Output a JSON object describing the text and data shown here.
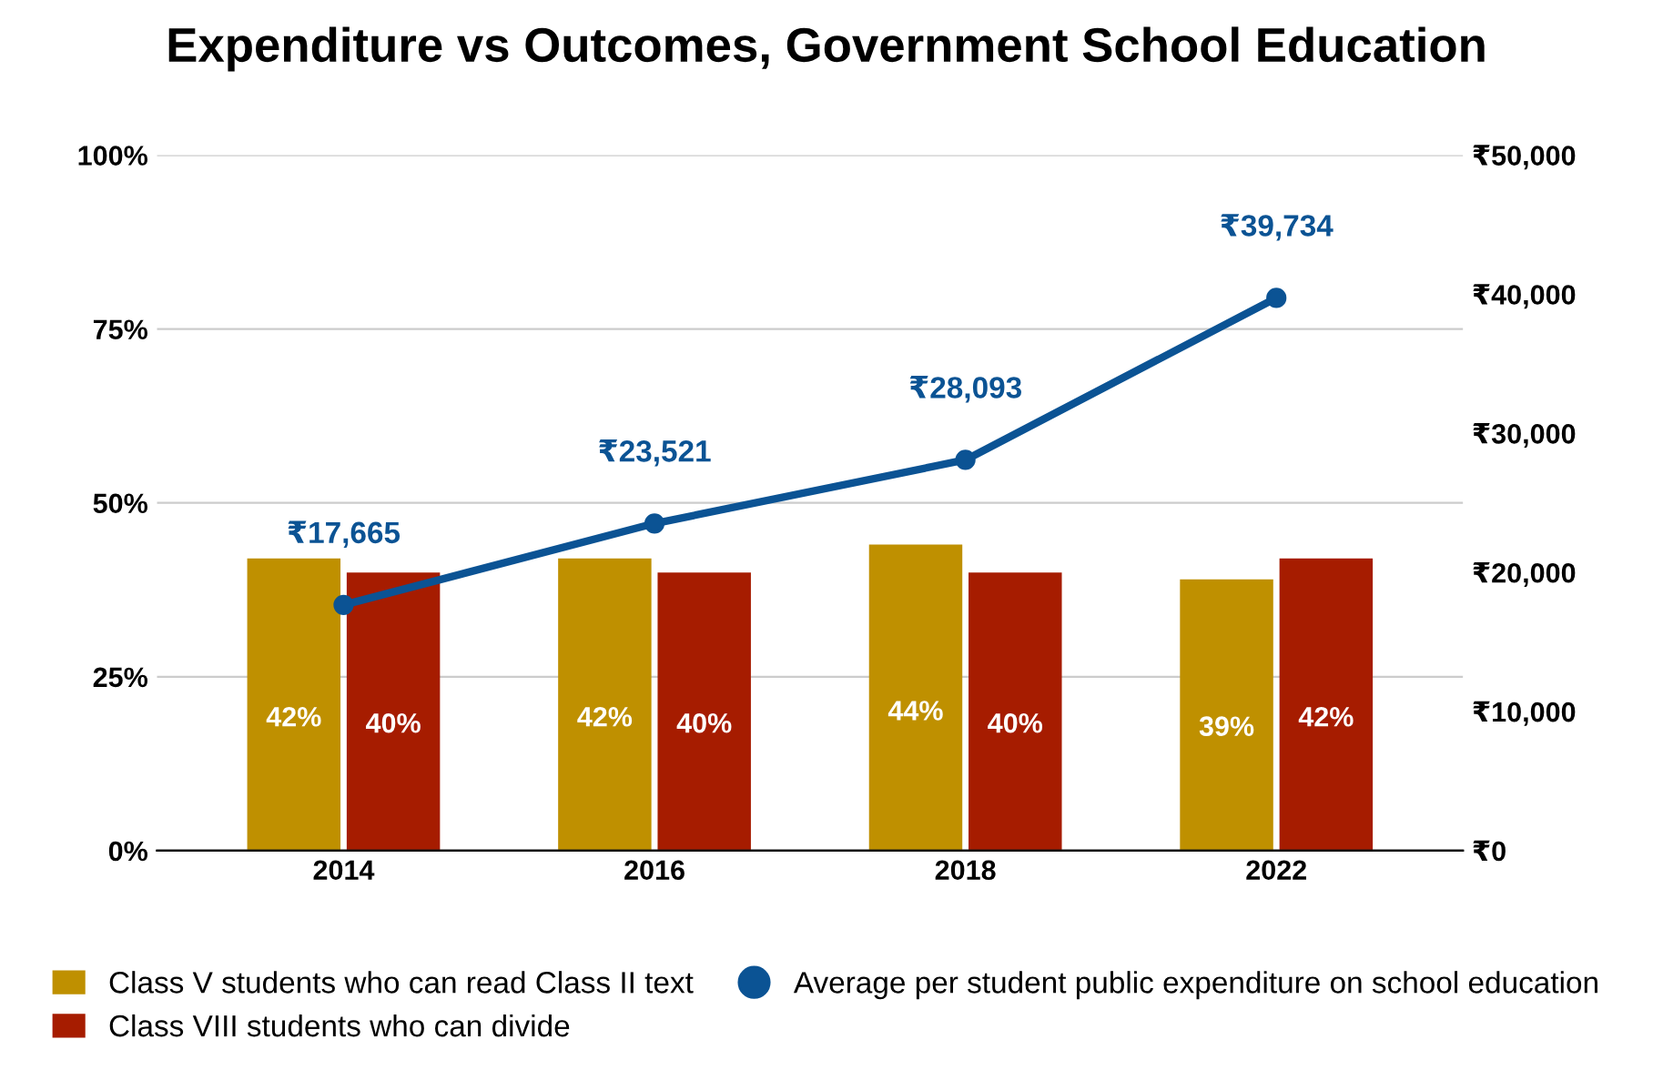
{
  "chart_data": {
    "type": "bar",
    "title": "Expenditure vs Outcomes, Government School Education",
    "categories": [
      "2014",
      "2016",
      "2018",
      "2022"
    ],
    "series": [
      {
        "name": "Class V students who can read Class II text",
        "color": "#bf9000",
        "values": [
          42,
          42,
          44,
          39
        ],
        "value_labels": [
          "42%",
          "42%",
          "44%",
          "39%"
        ]
      },
      {
        "name": "Class VIII students who can divide",
        "color": "#a61c00",
        "values": [
          40,
          40,
          40,
          42
        ],
        "value_labels": [
          "40%",
          "40%",
          "40%",
          "42%"
        ]
      },
      {
        "name": "Average per student public expenditure on school education",
        "type": "line",
        "axis": "y2",
        "color": "#0b5394",
        "values": [
          17665,
          23521,
          28093,
          39734
        ],
        "value_labels": [
          "₹17,665",
          "₹23,521",
          "₹28,093",
          "₹39,734"
        ]
      }
    ],
    "ylim": [
      0,
      100
    ],
    "yticks": [
      {
        "value": 0,
        "label": "0%"
      },
      {
        "value": 25,
        "label": "25%"
      },
      {
        "value": 50,
        "label": "50%"
      },
      {
        "value": 75,
        "label": "75%"
      },
      {
        "value": 100,
        "label": "100%"
      }
    ],
    "y2lim": [
      0,
      50000
    ],
    "y2ticks": [
      {
        "value": 0,
        "label": "₹0"
      },
      {
        "value": 10000,
        "label": "₹10,000"
      },
      {
        "value": 20000,
        "label": "₹20,000"
      },
      {
        "value": 30000,
        "label": "₹30,000"
      },
      {
        "value": 40000,
        "label": "₹40,000"
      },
      {
        "value": 50000,
        "label": "₹50,000"
      }
    ],
    "grid": "y",
    "legend": "bottom",
    "marker": "circle",
    "line_style": "solid"
  }
}
